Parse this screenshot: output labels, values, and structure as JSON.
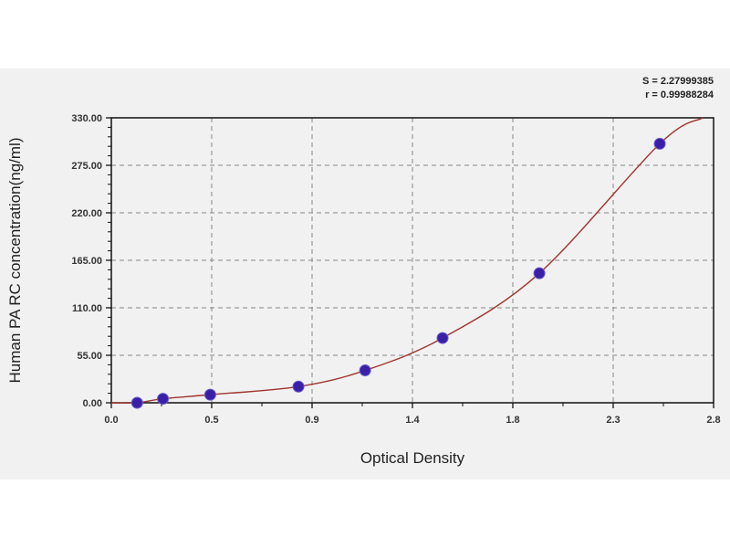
{
  "chart_data": {
    "type": "scatter",
    "xlabel": "Optical Density",
    "ylabel": "Human PA RC concentration(ng/ml)",
    "xlim": [
      0,
      2.8
    ],
    "ylim": [
      0,
      330
    ],
    "x_ticks": [
      "0.0",
      "0.5",
      "0.9",
      "1.4",
      "1.8",
      "2.3",
      "2.8"
    ],
    "y_ticks": [
      "0.00",
      "55.00",
      "110.00",
      "165.00",
      "220.00",
      "275.00",
      "330.00"
    ],
    "grid": true,
    "points": [
      {
        "x": 0.12,
        "y": 0
      },
      {
        "x": 0.24,
        "y": 4.69
      },
      {
        "x": 0.46,
        "y": 9.38
      },
      {
        "x": 0.87,
        "y": 18.75
      },
      {
        "x": 1.18,
        "y": 37.5
      },
      {
        "x": 1.54,
        "y": 75
      },
      {
        "x": 1.99,
        "y": 150
      },
      {
        "x": 2.55,
        "y": 300
      }
    ],
    "fit_curve": {
      "type": "smooth",
      "x_end": 2.75
    },
    "annotations": [
      "S = 2.27999385",
      "r = 0.99988284"
    ],
    "colors": {
      "points": "#3a1fa8",
      "curve": "#a0342f",
      "grid": "#888888"
    }
  }
}
